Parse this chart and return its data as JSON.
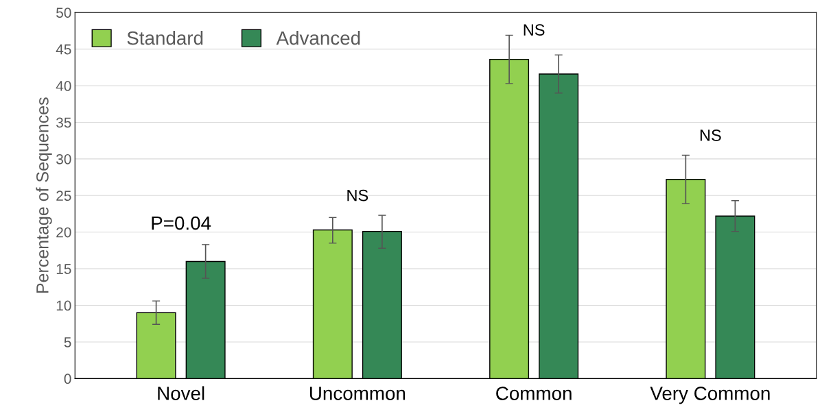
{
  "chart_data": {
    "type": "bar",
    "ylabel": "Percentage of Sequences",
    "categories": [
      "Novel",
      "Uncommon",
      "Common",
      "Very Common"
    ],
    "series": [
      {
        "name": "Standard",
        "color": "#92d050",
        "values": [
          9,
          20.3,
          43.6,
          27.2
        ],
        "errors": [
          [
            7.4,
            10.6
          ],
          [
            18.5,
            22
          ],
          [
            40.3,
            46.9
          ],
          [
            23.9,
            30.5
          ]
        ]
      },
      {
        "name": "Advanced",
        "color": "#358856",
        "values": [
          16,
          20.1,
          41.6,
          22.2
        ],
        "errors": [
          [
            13.7,
            18.3
          ],
          [
            17.8,
            22.3
          ],
          [
            39,
            44.2
          ],
          [
            20.1,
            24.3
          ]
        ]
      }
    ],
    "annotations": [
      "P=0.04",
      "NS",
      "NS",
      "NS"
    ],
    "ylim": [
      0,
      50
    ],
    "yticks": [
      0,
      5,
      10,
      15,
      20,
      25,
      30,
      35,
      40,
      45,
      50
    ],
    "grid": "y",
    "legend": "top left"
  }
}
